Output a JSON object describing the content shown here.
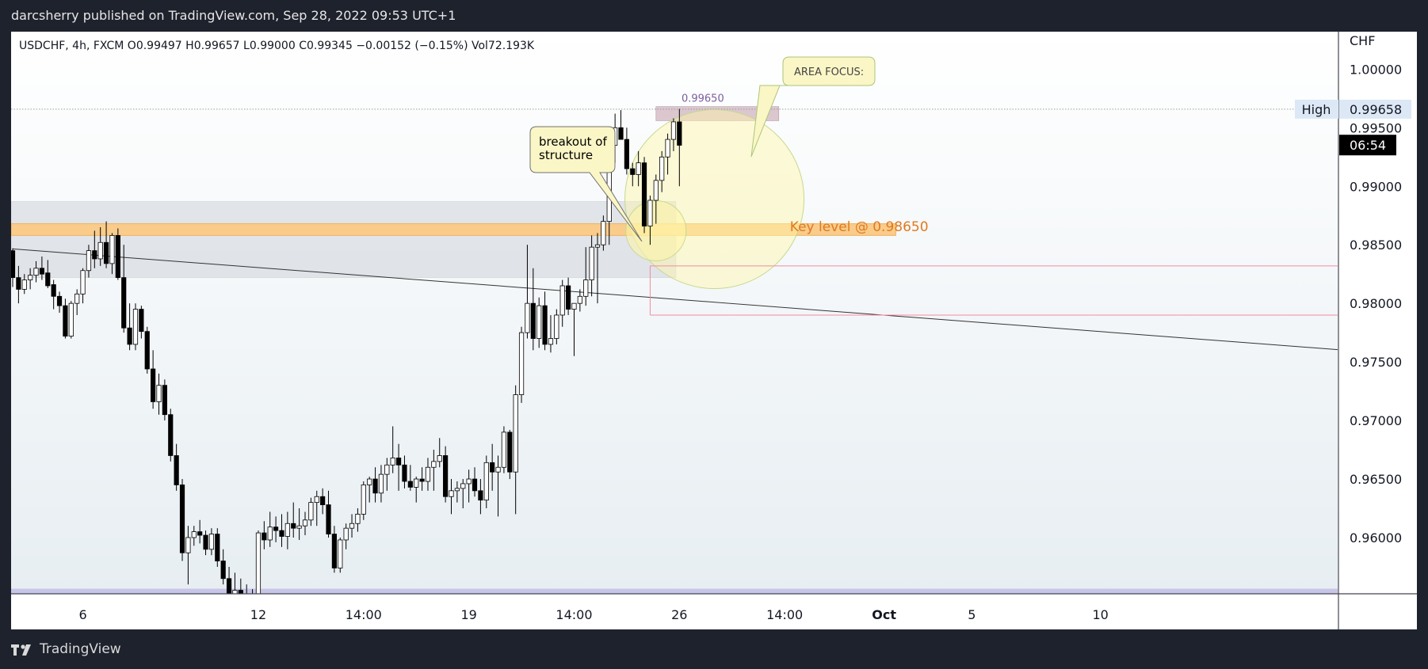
{
  "header": {
    "publisher_line": "darcsherry published on TradingView.com, Sep 28, 2022 09:53 UTC+1"
  },
  "footer": {
    "brand": "TradingView",
    "logo_icon": "tradingview-logo-icon"
  },
  "colors": {
    "bull_fill": "#ffffff",
    "bear_fill": "#000000",
    "wick": "#000000",
    "key_level_band": "#f9cc8b",
    "key_level_text": "#e07a1f",
    "resistance_box": "#dadde3",
    "high_box": "#dcc7cf",
    "circle_fill": "#fff6a8",
    "trend_line": "#333333",
    "red_line": "#f28ba0",
    "axis_bg": "#ffffff",
    "time_badge_bg": "#000000"
  },
  "chart_data": {
    "type": "candlestick",
    "symbol_line": {
      "symbol": "USDCHF, 4h, FXCM",
      "open": "O0.99497",
      "high": "H0.99657",
      "low": "L0.99000",
      "close": "C0.99345",
      "change": "−0.00152 (−0.15%)",
      "volume": "Vol72.193K"
    },
    "currency": "CHF",
    "ylim": [
      0.9552,
      1.0032
    ],
    "y_ticks": [
      {
        "v": 1.0,
        "label": "1.00000"
      },
      {
        "v": 0.995,
        "label": "0.99500"
      },
      {
        "v": 0.99,
        "label": "0.99000"
      },
      {
        "v": 0.985,
        "label": "0.98500"
      },
      {
        "v": 0.98,
        "label": "0.98000"
      },
      {
        "v": 0.975,
        "label": "0.97500"
      },
      {
        "v": 0.97,
        "label": "0.97000"
      },
      {
        "v": 0.965,
        "label": "0.96500"
      },
      {
        "v": 0.96,
        "label": "0.96000"
      }
    ],
    "x_ticks": [
      {
        "bar": 12,
        "label": "6",
        "bold": false
      },
      {
        "bar": 42,
        "label": "12",
        "bold": false
      },
      {
        "bar": 60,
        "label": "14:00",
        "bold": false
      },
      {
        "bar": 78,
        "label": "19",
        "bold": false
      },
      {
        "bar": 96,
        "label": "14:00",
        "bold": false
      },
      {
        "bar": 114,
        "label": "26",
        "bold": false
      },
      {
        "bar": 132,
        "label": "14:00",
        "bold": false
      },
      {
        "bar": 149,
        "label": "Oct",
        "bold": true
      },
      {
        "bar": 164,
        "label": "5",
        "bold": false
      },
      {
        "bar": 186,
        "label": "10",
        "bold": false
      }
    ],
    "candles": [
      [
        0.9845,
        0.9847,
        0.9814,
        0.9822
      ],
      [
        0.9822,
        0.9832,
        0.98,
        0.9812
      ],
      [
        0.9812,
        0.9825,
        0.9808,
        0.982
      ],
      [
        0.982,
        0.983,
        0.9812,
        0.9824
      ],
      [
        0.9824,
        0.9836,
        0.9818,
        0.983
      ],
      [
        0.983,
        0.984,
        0.982,
        0.9825
      ],
      [
        0.9826,
        0.9837,
        0.9813,
        0.9815
      ],
      [
        0.9816,
        0.982,
        0.9795,
        0.9806
      ],
      [
        0.9806,
        0.981,
        0.9792,
        0.9798
      ],
      [
        0.9798,
        0.9804,
        0.977,
        0.9772
      ],
      [
        0.9772,
        0.9802,
        0.977,
        0.98
      ],
      [
        0.98,
        0.9812,
        0.979,
        0.9808
      ],
      [
        0.9808,
        0.983,
        0.98,
        0.9828
      ],
      [
        0.9828,
        0.985,
        0.9822,
        0.9845
      ],
      [
        0.9845,
        0.9862,
        0.983,
        0.9838
      ],
      [
        0.9838,
        0.9865,
        0.9832,
        0.9852
      ],
      [
        0.9852,
        0.987,
        0.983,
        0.9834
      ],
      [
        0.9834,
        0.986,
        0.9825,
        0.9858
      ],
      [
        0.9858,
        0.9864,
        0.982,
        0.9822
      ],
      [
        0.9822,
        0.985,
        0.9775,
        0.9779
      ],
      [
        0.9779,
        0.98,
        0.976,
        0.9765
      ],
      [
        0.9765,
        0.98,
        0.976,
        0.9795
      ],
      [
        0.9795,
        0.9798,
        0.977,
        0.9776
      ],
      [
        0.9776,
        0.978,
        0.974,
        0.9744
      ],
      [
        0.9744,
        0.976,
        0.971,
        0.9716
      ],
      [
        0.9716,
        0.974,
        0.9705,
        0.973
      ],
      [
        0.973,
        0.9735,
        0.97,
        0.9705
      ],
      [
        0.9705,
        0.971,
        0.9665,
        0.967
      ],
      [
        0.967,
        0.968,
        0.964,
        0.9645
      ],
      [
        0.9645,
        0.965,
        0.958,
        0.9587
      ],
      [
        0.9587,
        0.961,
        0.956,
        0.96
      ],
      [
        0.96,
        0.961,
        0.9593,
        0.9605
      ],
      [
        0.9605,
        0.9615,
        0.9595,
        0.9602
      ],
      [
        0.9602,
        0.9606,
        0.9585,
        0.959
      ],
      [
        0.959,
        0.9608,
        0.9585,
        0.9603
      ],
      [
        0.9603,
        0.9608,
        0.9575,
        0.958
      ],
      [
        0.958,
        0.959,
        0.956,
        0.9565
      ],
      [
        0.9565,
        0.9575,
        0.9548,
        0.9552
      ],
      [
        0.9552,
        0.957,
        0.9548,
        0.9555
      ],
      [
        0.9555,
        0.9565,
        0.9546,
        0.9549
      ],
      [
        0.9549,
        0.956,
        0.9546,
        0.9552
      ],
      [
        0.9552,
        0.9556,
        0.9546,
        0.9549
      ],
      [
        0.9549,
        0.9606,
        0.9546,
        0.9604
      ],
      [
        0.9604,
        0.9614,
        0.959,
        0.9598
      ],
      [
        0.9598,
        0.9622,
        0.9592,
        0.9609
      ],
      [
        0.9609,
        0.9618,
        0.9596,
        0.9606
      ],
      [
        0.9606,
        0.962,
        0.9592,
        0.9601
      ],
      [
        0.9601,
        0.9622,
        0.959,
        0.9612
      ],
      [
        0.9612,
        0.963,
        0.96,
        0.9608
      ],
      [
        0.9608,
        0.9625,
        0.9598,
        0.961
      ],
      [
        0.961,
        0.9622,
        0.9602,
        0.9615
      ],
      [
        0.9615,
        0.9634,
        0.961,
        0.963
      ],
      [
        0.963,
        0.964,
        0.961,
        0.9635
      ],
      [
        0.9635,
        0.9642,
        0.962,
        0.9628
      ],
      [
        0.9628,
        0.964,
        0.96,
        0.9603
      ],
      [
        0.9603,
        0.961,
        0.957,
        0.9574
      ],
      [
        0.9574,
        0.96,
        0.957,
        0.9598
      ],
      [
        0.9598,
        0.9612,
        0.959,
        0.9608
      ],
      [
        0.9608,
        0.962,
        0.96,
        0.9612
      ],
      [
        0.9612,
        0.9625,
        0.9605,
        0.962
      ],
      [
        0.962,
        0.9648,
        0.9615,
        0.9645
      ],
      [
        0.9645,
        0.9652,
        0.963,
        0.965
      ],
      [
        0.965,
        0.966,
        0.963,
        0.9638
      ],
      [
        0.9638,
        0.9662,
        0.963,
        0.9654
      ],
      [
        0.9654,
        0.9668,
        0.964,
        0.9662
      ],
      [
        0.9662,
        0.9695,
        0.9655,
        0.9668
      ],
      [
        0.9668,
        0.968,
        0.964,
        0.9662
      ],
      [
        0.9662,
        0.967,
        0.9642,
        0.9648
      ],
      [
        0.9648,
        0.9662,
        0.964,
        0.9643
      ],
      [
        0.9643,
        0.9652,
        0.963,
        0.965
      ],
      [
        0.965,
        0.966,
        0.964,
        0.9648
      ],
      [
        0.9648,
        0.9668,
        0.964,
        0.966
      ],
      [
        0.966,
        0.9675,
        0.964,
        0.9665
      ],
      [
        0.9665,
        0.9685,
        0.966,
        0.967
      ],
      [
        0.967,
        0.9678,
        0.963,
        0.9635
      ],
      [
        0.9635,
        0.965,
        0.962,
        0.964
      ],
      [
        0.964,
        0.9648,
        0.963,
        0.9642
      ],
      [
        0.9642,
        0.965,
        0.9625,
        0.9646
      ],
      [
        0.9646,
        0.9658,
        0.963,
        0.965
      ],
      [
        0.965,
        0.966,
        0.9635,
        0.964
      ],
      [
        0.964,
        0.965,
        0.962,
        0.9632
      ],
      [
        0.9632,
        0.967,
        0.9625,
        0.9664
      ],
      [
        0.9664,
        0.968,
        0.964,
        0.9656
      ],
      [
        0.9656,
        0.967,
        0.9618,
        0.966
      ],
      [
        0.966,
        0.9695,
        0.9655,
        0.969
      ],
      [
        0.969,
        0.9692,
        0.965,
        0.9656
      ],
      [
        0.9656,
        0.973,
        0.962,
        0.9722
      ],
      [
        0.9722,
        0.978,
        0.9715,
        0.9775
      ],
      [
        0.9775,
        0.985,
        0.977,
        0.98
      ],
      [
        0.98,
        0.983,
        0.976,
        0.977
      ],
      [
        0.977,
        0.9805,
        0.9762,
        0.9798
      ],
      [
        0.9798,
        0.981,
        0.976,
        0.9765
      ],
      [
        0.9765,
        0.979,
        0.9758,
        0.977
      ],
      [
        0.977,
        0.9795,
        0.9765,
        0.979
      ],
      [
        0.979,
        0.982,
        0.978,
        0.9815
      ],
      [
        0.9815,
        0.9822,
        0.979,
        0.9795
      ],
      [
        0.9795,
        0.98,
        0.9755,
        0.98
      ],
      [
        0.98,
        0.9812,
        0.9793,
        0.9806
      ],
      [
        0.9806,
        0.9848,
        0.9798,
        0.982
      ],
      [
        0.982,
        0.9858,
        0.9806,
        0.9848
      ],
      [
        0.9848,
        0.986,
        0.98,
        0.985
      ],
      [
        0.985,
        0.9875,
        0.9845,
        0.987
      ],
      [
        0.987,
        0.9935,
        0.985,
        0.9935
      ],
      [
        0.9935,
        0.9962,
        0.992,
        0.995
      ],
      [
        0.995,
        0.9965,
        0.994,
        0.994
      ],
      [
        0.994,
        0.995,
        0.991,
        0.9915
      ],
      [
        0.9915,
        0.992,
        0.99,
        0.991
      ],
      [
        0.991,
        0.993,
        0.99,
        0.992
      ],
      [
        0.992,
        0.9925,
        0.986,
        0.9866
      ],
      [
        0.9866,
        0.9892,
        0.985,
        0.9888
      ],
      [
        0.9888,
        0.991,
        0.9868,
        0.9905
      ],
      [
        0.9905,
        0.993,
        0.9895,
        0.9925
      ],
      [
        0.9925,
        0.9945,
        0.991,
        0.994
      ],
      [
        0.994,
        0.9958,
        0.993,
        0.9955
      ],
      [
        0.9955,
        0.9966,
        0.99,
        0.9935
      ]
    ],
    "annotations": {
      "high_label": "High",
      "high_price": "0.99658",
      "high_value": 0.99658,
      "last_price": 0.99345,
      "countdown": "06:54",
      "box_label": "0.99650",
      "key_level_text": "Key level @ 0.98650",
      "key_level_value": 0.9865,
      "key_level_band": [
        0.9858,
        0.9868
      ],
      "resistance_zone": [
        0.9822,
        0.9887
      ],
      "breakout_callout": [
        "breakout of",
        "structure"
      ],
      "area_focus_callout": "AREA FOCUS:",
      "trend_line": {
        "from": [
          0,
          0.98465
        ],
        "to": [
          190,
          0.97605
        ]
      },
      "red_lines": [
        0.9832,
        0.979
      ],
      "floor_line": 0.9555
    }
  }
}
